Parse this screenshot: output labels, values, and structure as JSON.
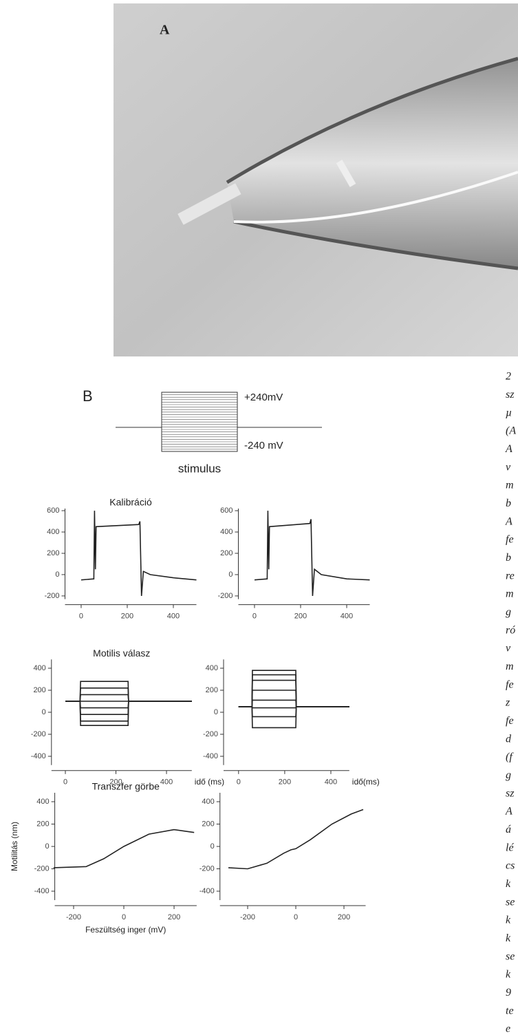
{
  "figure": {
    "label_a": "A",
    "label_b": "B",
    "stimulus": {
      "top_label": "+240mV",
      "bottom_label": "-240 mV",
      "caption": "stimulus"
    }
  },
  "chart_data": [
    {
      "type": "line",
      "title": "Kalibráció",
      "xlim": [
        -70,
        500
      ],
      "ylim": [
        -230,
        620
      ],
      "xticks": [
        0,
        200,
        400
      ],
      "yticks": [
        -200,
        0,
        200,
        400,
        600
      ],
      "x": [
        0,
        55,
        58,
        62,
        65,
        250,
        255,
        262,
        270,
        300,
        400,
        500
      ],
      "series": [
        {
          "color": "#222222",
          "values": [
            -50,
            -40,
            600,
            50,
            450,
            470,
            500,
            -200,
            30,
            0,
            -30,
            -50
          ]
        }
      ]
    },
    {
      "type": "line",
      "xlim": [
        -70,
        500
      ],
      "ylim": [
        -230,
        620
      ],
      "xticks": [
        0,
        200,
        400
      ],
      "yticks": [
        -200,
        0,
        200,
        400,
        600
      ],
      "x": [
        0,
        55,
        58,
        62,
        65,
        240,
        245,
        252,
        260,
        290,
        400,
        500
      ],
      "series": [
        {
          "color": "#222222",
          "values": [
            -50,
            -40,
            600,
            50,
            450,
            480,
            520,
            -200,
            50,
            0,
            -40,
            -50
          ]
        }
      ]
    },
    {
      "type": "line",
      "title": "Motilis válasz",
      "x_label": "idő (ms)",
      "xlim": [
        -55,
        500
      ],
      "ylim": [
        -480,
        480
      ],
      "xticks": [
        0,
        200,
        400
      ],
      "yticks": [
        -400,
        -200,
        0,
        200,
        400
      ],
      "x": [
        0,
        58,
        60,
        248,
        250,
        500
      ],
      "series": [
        {
          "color": "#222222",
          "values": [
            100,
            100,
            280,
            280,
            100,
            100
          ]
        },
        {
          "color": "#222222",
          "values": [
            100,
            100,
            220,
            220,
            100,
            100
          ]
        },
        {
          "color": "#222222",
          "values": [
            100,
            100,
            160,
            160,
            100,
            100
          ]
        },
        {
          "color": "#222222",
          "values": [
            100,
            100,
            100,
            100,
            100,
            100
          ]
        },
        {
          "color": "#222222",
          "values": [
            100,
            100,
            40,
            40,
            100,
            100
          ]
        },
        {
          "color": "#222222",
          "values": [
            100,
            100,
            -20,
            -20,
            100,
            100
          ]
        },
        {
          "color": "#222222",
          "values": [
            100,
            100,
            -80,
            -80,
            100,
            100
          ]
        },
        {
          "color": "#222222",
          "values": [
            100,
            100,
            -120,
            -120,
            100,
            100
          ]
        }
      ]
    },
    {
      "type": "line",
      "x_label": "idő(ms)",
      "xlim": [
        -65,
        480
      ],
      "ylim": [
        -480,
        480
      ],
      "xticks": [
        0,
        200,
        400
      ],
      "yticks": [
        -400,
        -200,
        0,
        200,
        400
      ],
      "x": [
        0,
        58,
        60,
        248,
        250,
        480
      ],
      "series": [
        {
          "color": "#222222",
          "values": [
            50,
            50,
            380,
            380,
            50,
            50
          ]
        },
        {
          "color": "#222222",
          "values": [
            50,
            50,
            340,
            340,
            50,
            50
          ]
        },
        {
          "color": "#222222",
          "values": [
            50,
            50,
            290,
            290,
            50,
            50
          ]
        },
        {
          "color": "#222222",
          "values": [
            50,
            50,
            200,
            200,
            50,
            50
          ]
        },
        {
          "color": "#222222",
          "values": [
            50,
            50,
            110,
            110,
            50,
            50
          ]
        },
        {
          "color": "#222222",
          "values": [
            50,
            50,
            40,
            40,
            50,
            50
          ]
        },
        {
          "color": "#222222",
          "values": [
            50,
            50,
            -40,
            -40,
            50,
            50
          ]
        },
        {
          "color": "#222222",
          "values": [
            50,
            50,
            -140,
            -140,
            50,
            50
          ]
        }
      ]
    },
    {
      "type": "line",
      "title": "Transzfer görbe",
      "x_label": "Feszültség inger (mV)",
      "y_label": "Motilitás (nm)",
      "xlim": [
        -275,
        290
      ],
      "ylim": [
        -480,
        480
      ],
      "xticks": [
        -200,
        0,
        200
      ],
      "yticks": [
        -400,
        -200,
        0,
        200,
        400
      ],
      "x": [
        -280,
        -150,
        -80,
        0,
        100,
        200,
        280
      ],
      "series": [
        {
          "color": "#222222",
          "values": [
            -190,
            -180,
            -110,
            0,
            110,
            150,
            125
          ]
        }
      ]
    },
    {
      "type": "line",
      "xlim": [
        -315,
        290
      ],
      "ylim": [
        -480,
        480
      ],
      "xticks": [
        -200,
        0,
        200
      ],
      "yticks": [
        -400,
        -200,
        0,
        200,
        400
      ],
      "x": [
        -280,
        -200,
        -120,
        -50,
        -20,
        0,
        60,
        150,
        230,
        280
      ],
      "series": [
        {
          "color": "#222222",
          "values": [
            -190,
            -200,
            -150,
            -60,
            -30,
            -20,
            60,
            200,
            290,
            330
          ]
        }
      ]
    }
  ],
  "side_text": [
    "2",
    "sz",
    "µ",
    "(A",
    "A",
    "v",
    "m",
    "b",
    "A",
    "fe",
    "b",
    "re",
    "m",
    "g",
    "ró",
    "v",
    "m",
    "fe",
    "z",
    "fe",
    "d",
    "(f",
    "g",
    "sz",
    "A",
    "á",
    "lé",
    "cs",
    "k",
    "se",
    "k",
    "k",
    "se",
    "k",
    "9",
    "te",
    "e"
  ]
}
